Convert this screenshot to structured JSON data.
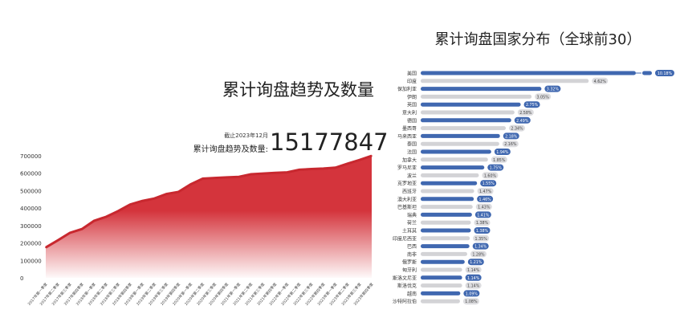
{
  "left": {
    "title": "累计询盘趋势及数量",
    "as_of": "截止2023年12月",
    "total_label": "累计询盘趋势及数量:",
    "total": "15177847"
  },
  "right": {
    "title": "累计询盘国家分布（全球前30）"
  },
  "colors": {
    "area": "#d4343c",
    "bar_blue": "#4068b0",
    "bar_gray": "#d3d3d6"
  },
  "chart_data": [
    {
      "type": "area",
      "title": "累计询盘趋势及数量",
      "ylim": [
        0,
        700000
      ],
      "yticks": [
        0,
        100000,
        200000,
        300000,
        400000,
        500000,
        600000,
        700000
      ],
      "grid": false,
      "categories": [
        "2017年第一季度",
        "2017年第二季度",
        "2017年第三季度",
        "2017年第四季度",
        "2018年第一季度",
        "2018年第二季度",
        "2018年第三季度",
        "2018年第四季度",
        "2019年第一季度",
        "2019年第二季度",
        "2019年第三季度",
        "2019年第四季度",
        "2020年第一季度",
        "2020年第二季度",
        "2020年第三季度",
        "2020年第四季度",
        "2021年第一季度",
        "2021年第二季度",
        "2021年第三季度",
        "2021年第四季度",
        "2022年第一季度",
        "2022年第二季度",
        "2022年第三季度",
        "2022年第四季度",
        "2023年第一季度",
        "2023年第二季度",
        "2023年第三季度",
        "2023年第四季度"
      ],
      "values": [
        174000,
        215000,
        258000,
        280000,
        327000,
        350000,
        383000,
        421000,
        441000,
        455000,
        481000,
        493000,
        536000,
        569000,
        573000,
        576000,
        579000,
        594000,
        598000,
        602000,
        605000,
        620000,
        624000,
        627000,
        632000,
        655000,
        676000,
        700000
      ]
    },
    {
      "type": "bar",
      "orientation": "horizontal",
      "title": "累计询盘国家分布（全球前30）",
      "unit": "%",
      "categories": [
        "美国",
        "印度",
        "保加利亚",
        "伊朗",
        "英国",
        "意大利",
        "德国",
        "墨西哥",
        "马来西亚",
        "泰国",
        "法国",
        "加拿大",
        "罗马尼亚",
        "波兰",
        "克罗地亚",
        "西班牙",
        "澳大利亚",
        "巴基斯坦",
        "瑞典",
        "荷兰",
        "土耳其",
        "印度尼西亚",
        "巴西",
        "南非",
        "俄罗斯",
        "匈牙利",
        "斯洛文尼亚",
        "斯洛伐克",
        "越南",
        "沙特阿拉伯"
      ],
      "values": [
        10.18,
        4.62,
        3.32,
        3.05,
        2.75,
        2.58,
        2.49,
        2.34,
        2.18,
        2.16,
        1.94,
        1.85,
        1.75,
        1.6,
        1.55,
        1.47,
        1.46,
        1.43,
        1.41,
        1.38,
        1.38,
        1.35,
        1.34,
        1.28,
        1.21,
        1.14,
        1.14,
        1.14,
        1.09,
        1.08
      ],
      "labels": [
        "10.18%",
        "4.62%",
        "3.32%",
        "3.05%",
        "2.75%",
        "2.58%",
        "2.49%",
        "2.34%",
        "2.18%",
        "2.16%",
        "1.94%",
        "1.85%",
        "1.75%",
        "1.60%",
        "1.55%",
        "1.47%",
        "1.46%",
        "1.43%",
        "1.41%",
        "1.38%",
        "1.38%",
        "1.35%",
        "1.34%",
        "1.28%",
        "1.21%",
        "1.14%",
        "1.14%",
        "1.14%",
        "1.09%",
        "1.08%"
      ],
      "axis_break": true
    }
  ]
}
